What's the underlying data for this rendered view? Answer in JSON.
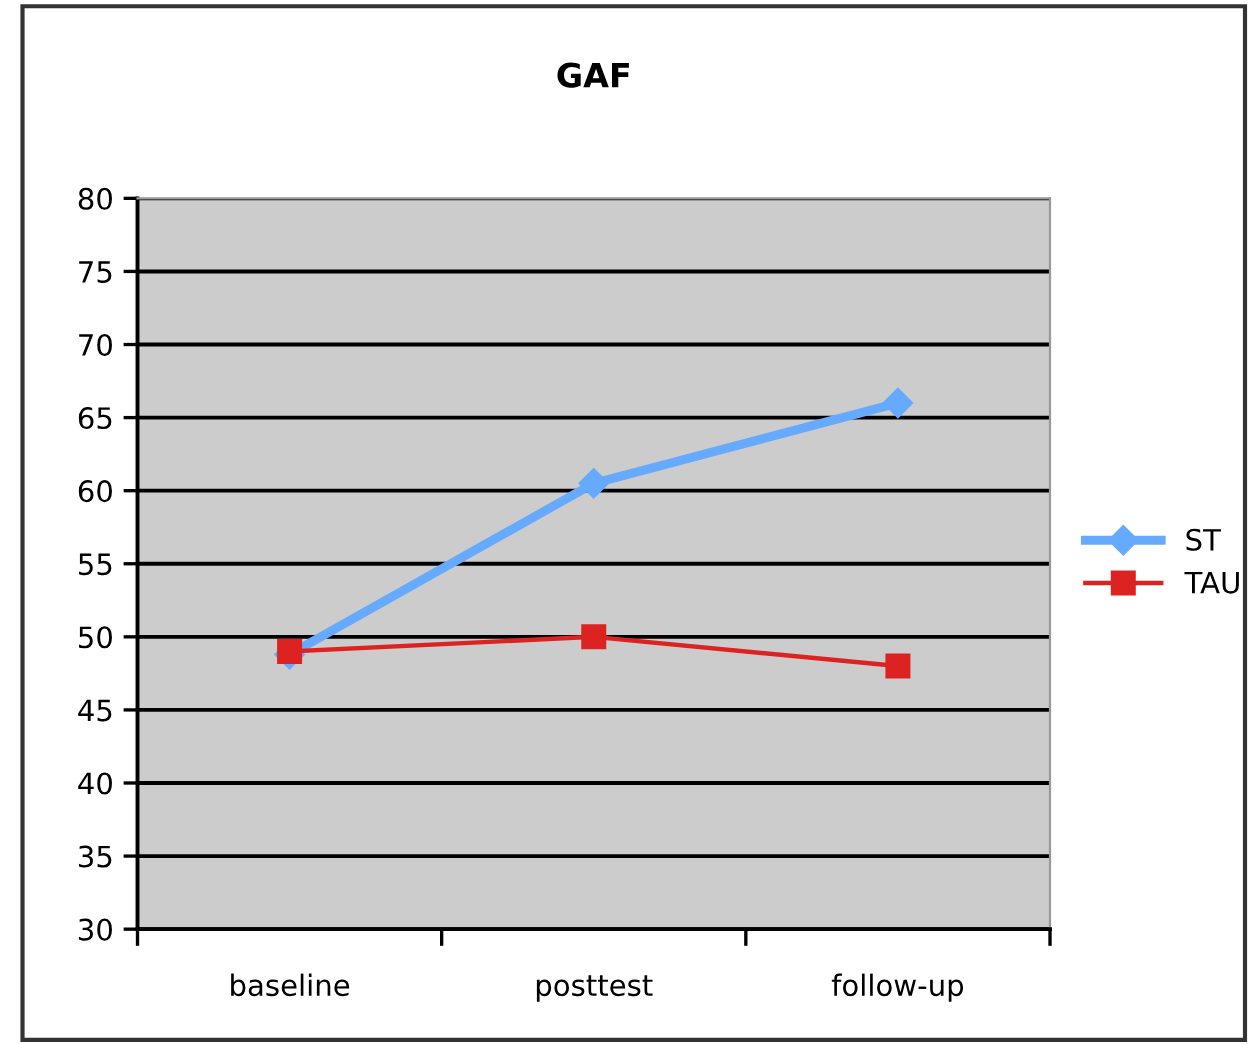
{
  "chart_data": {
    "type": "line",
    "title": "GAF",
    "categories": [
      "baseline",
      "posttest",
      "follow-up"
    ],
    "series": [
      {
        "name": "ST",
        "color": "#66aaff",
        "marker": "diamond",
        "values": [
          48.8,
          60.5,
          66
        ]
      },
      {
        "name": "TAU",
        "color": "#dd2222",
        "marker": "square",
        "values": [
          49,
          50,
          48
        ]
      }
    ],
    "ylim": [
      30,
      80
    ],
    "yticks": [
      30,
      35,
      40,
      45,
      50,
      55,
      60,
      65,
      70,
      75,
      80
    ],
    "grid": "y",
    "legend": "right"
  }
}
